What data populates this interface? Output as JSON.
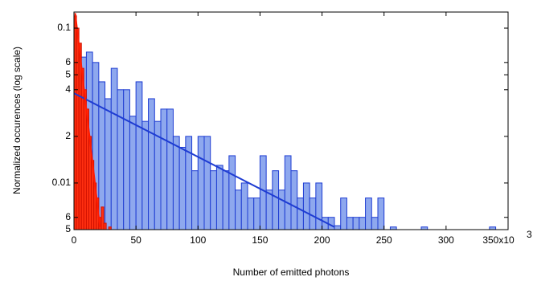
{
  "chart_data": {
    "type": "histogram",
    "ylabel": "Normalized occurences (log scale)",
    "xlabel": "Number of emitted photons",
    "x_exponent": "3",
    "xlim": [
      0,
      350
    ],
    "xticks": [
      0,
      50,
      100,
      150,
      200,
      250,
      300,
      {
        "value": 350,
        "label": "350x10"
      }
    ],
    "ylim": [
      0.005,
      0.127
    ],
    "ylog": true,
    "yticks": [
      {
        "value": 0.005,
        "label": "5"
      },
      {
        "value": 0.006,
        "label": "6"
      },
      0.01,
      {
        "value": 0.02,
        "label": "2"
      },
      {
        "value": 0.04,
        "label": "4"
      },
      {
        "value": 0.05,
        "label": "5"
      },
      {
        "value": 0.06,
        "label": "6"
      },
      0.1
    ],
    "histograms": [
      {
        "color": "#8ea8ee",
        "edge_color": "#1e3cd2",
        "bins": [
          0,
          5,
          10,
          15,
          20,
          25,
          30,
          35,
          40,
          45,
          50,
          55,
          60,
          65,
          70,
          75,
          80,
          85,
          90,
          95,
          100,
          105,
          110,
          115,
          120,
          125,
          130,
          135,
          140,
          145,
          150,
          155,
          160,
          165,
          170,
          175,
          180,
          185,
          190,
          195,
          200,
          205,
          210,
          215,
          220,
          225,
          230,
          235,
          240,
          245,
          250,
          255,
          260,
          265,
          270,
          275,
          280,
          285,
          290,
          295,
          300,
          305,
          310,
          315,
          320,
          325,
          330,
          335,
          340
        ],
        "values": [
          0.075,
          0.065,
          0.07,
          0.06,
          0.045,
          0.035,
          0.055,
          0.04,
          0.04,
          0.027,
          0.045,
          0.025,
          0.035,
          0.025,
          0.03,
          0.03,
          0.02,
          0.017,
          0.02,
          0.012,
          0.02,
          0.02,
          0.012,
          0.013,
          0.012,
          0.015,
          0.009,
          0.01,
          0.008,
          0.008,
          0.015,
          0.009,
          0.012,
          0.009,
          0.015,
          0.012,
          0.008,
          0.01,
          0.008,
          0.01,
          0.006,
          0.006,
          0.0053,
          0.008,
          0.006,
          0.006,
          0.006,
          0.008,
          0.006,
          0.008,
          0,
          0.0052,
          0,
          0,
          0,
          0,
          0.0052,
          0,
          0,
          0,
          0,
          0,
          0,
          0,
          0,
          0,
          0,
          0.0052
        ]
      },
      {
        "color": "#ff3010",
        "edge_color": "#d01000",
        "bins": [
          0,
          2,
          4,
          6,
          8,
          10,
          12,
          14,
          16,
          18,
          20,
          22,
          24,
          26,
          28,
          30
        ],
        "values": [
          0.12,
          0.1,
          0.08,
          0.055,
          0.04,
          0.03,
          0.02,
          0.014,
          0.01,
          0.008,
          0.006,
          0.007,
          0.0055,
          0,
          0.0052
        ]
      }
    ],
    "fits": [
      {
        "color": "#1e3cd2",
        "x": [
          0,
          210
        ],
        "values": [
          0.038,
          0.0052
        ]
      },
      {
        "color": "#ff1a00",
        "x": [
          1,
          21
        ],
        "values": [
          0.125,
          0.0052
        ]
      }
    ]
  }
}
